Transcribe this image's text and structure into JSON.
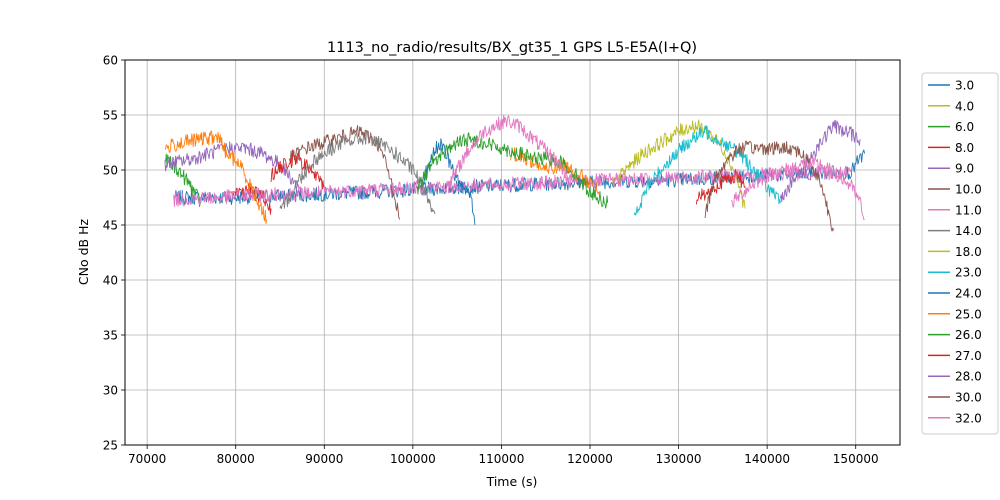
{
  "chart_data": {
    "type": "line",
    "title": "1113_no_radio/results/BX_gt35_1 GPS L5-E5A(I+Q)",
    "xlabel": "Time (s)",
    "ylabel": "CNo dB Hz",
    "xlim": [
      67500,
      155000
    ],
    "ylim": [
      25,
      60
    ],
    "xticks": [
      70000,
      80000,
      90000,
      100000,
      110000,
      120000,
      130000,
      140000,
      150000
    ],
    "yticks": [
      25,
      30,
      35,
      40,
      45,
      50,
      55,
      60
    ],
    "grid": true,
    "legend_position": "right",
    "series": [
      {
        "name": "3.0",
        "color": "#1f77b4",
        "segments": [
          [
            [
              73000,
              47.5
            ],
            [
              80000,
              47.5
            ],
            [
              90000,
              47.8
            ],
            [
              100000,
              48.2
            ],
            [
              110000,
              48.6
            ],
            [
              120000,
              48.9
            ],
            [
              130000,
              49.1
            ],
            [
              140000,
              49.5
            ],
            [
              149500,
              49.8
            ],
            [
              150000,
              50.5
            ],
            [
              150500,
              51.0
            ],
            [
              151000,
              51.5
            ]
          ]
        ]
      },
      {
        "name": "4.0",
        "color": "#bcbd22",
        "segments": [
          [
            [
              122500,
              48.5
            ],
            [
              124000,
              50.0
            ],
            [
              126000,
              51.5
            ],
            [
              128000,
              52.5
            ],
            [
              130000,
              53.5
            ],
            [
              131500,
              54.0
            ],
            [
              133000,
              53.8
            ],
            [
              135000,
              52.0
            ],
            [
              136500,
              49.5
            ],
            [
              137500,
              46.5
            ]
          ]
        ]
      },
      {
        "name": "6.0",
        "color": "#2ca02c",
        "segments": [
          [
            [
              72000,
              51.0
            ],
            [
              73500,
              50.0
            ],
            [
              75000,
              48.5
            ],
            [
              76000,
              47.0
            ]
          ]
        ]
      },
      {
        "name": "8.0",
        "color": "#d62728",
        "segments": [
          [
            [
              79000,
              48.0
            ],
            [
              80000,
              48.0
            ],
            [
              81500,
              48.2
            ],
            [
              83000,
              47.5
            ],
            [
              84000,
              46.5
            ]
          ]
        ]
      },
      {
        "name": "9.0",
        "color": "#9467bd",
        "segments": [
          [
            [
              72000,
              50.5
            ],
            [
              75000,
              51.0
            ],
            [
              77000,
              51.5
            ],
            [
              79000,
              52.0
            ],
            [
              81000,
              52.0
            ],
            [
              83000,
              51.5
            ],
            [
              85000,
              50.5
            ],
            [
              86500,
              49.0
            ],
            [
              87500,
              48.0
            ]
          ]
        ]
      },
      {
        "name": "10.0",
        "color": "#8c564b",
        "segments": [
          [
            [
              86000,
              51.0
            ],
            [
              88000,
              52.0
            ],
            [
              90000,
              52.5
            ],
            [
              92000,
              53.0
            ],
            [
              94000,
              53.5
            ],
            [
              96000,
              52.5
            ],
            [
              97000,
              50.5
            ],
            [
              98000,
              47.5
            ],
            [
              98500,
              45.5
            ]
          ]
        ]
      },
      {
        "name": "11.0",
        "color": "#e377c2",
        "segments": [
          [
            [
              73000,
              47.3
            ],
            [
              80000,
              47.6
            ],
            [
              90000,
              48.0
            ],
            [
              100000,
              48.4
            ],
            [
              110000,
              48.7
            ],
            [
              120000,
              49.0
            ],
            [
              130000,
              49.3
            ],
            [
              140000,
              49.6
            ],
            [
              149500,
              49.8
            ]
          ]
        ]
      },
      {
        "name": "14.0",
        "color": "#7f7f7f",
        "segments": [
          [
            [
              85000,
              46.0
            ],
            [
              86000,
              47.5
            ],
            [
              87000,
              49.0
            ],
            [
              89000,
              51.0
            ],
            [
              92000,
              52.5
            ],
            [
              95000,
              53.0
            ],
            [
              98000,
              51.5
            ],
            [
              100000,
              50.0
            ],
            [
              101500,
              48.0
            ],
            [
              102500,
              46.0
            ]
          ]
        ]
      },
      {
        "name": "18.0",
        "color": "#bcbd22",
        "segments": []
      },
      {
        "name": "23.0",
        "color": "#17becf",
        "segments": [
          [
            [
              125000,
              45.5
            ],
            [
              126500,
              48.5
            ],
            [
              128500,
              50.5
            ],
            [
              131000,
              52.5
            ],
            [
              133000,
              53.5
            ],
            [
              135000,
              52.5
            ],
            [
              137000,
              51.5
            ],
            [
              139000,
              49.5
            ],
            [
              140500,
              48.0
            ],
            [
              141500,
              47.0
            ]
          ]
        ]
      },
      {
        "name": "24.0",
        "color": "#1f77b4",
        "segments": [
          [
            [
              101000,
              48.5
            ],
            [
              102000,
              51.0
            ],
            [
              103000,
              52.5
            ],
            [
              104000,
              51.0
            ],
            [
              105000,
              49.0
            ],
            [
              106500,
              48.0
            ],
            [
              107000,
              45.0
            ]
          ]
        ]
      },
      {
        "name": "25.0",
        "color": "#ff7f0e",
        "segments": [
          [
            [
              72000,
              52.0
            ],
            [
              74000,
              52.5
            ],
            [
              76000,
              52.8
            ],
            [
              78000,
              53.0
            ],
            [
              79000,
              51.5
            ],
            [
              80500,
              50.5
            ],
            [
              82000,
              48.0
            ],
            [
              83500,
              45.5
            ]
          ],
          [
            [
              111000,
              51.5
            ],
            [
              113000,
              51.0
            ],
            [
              115000,
              50.0
            ],
            [
              117000,
              50.5
            ],
            [
              119000,
              49.5
            ],
            [
              121000,
              48.0
            ]
          ]
        ]
      },
      {
        "name": "26.0",
        "color": "#2ca02c",
        "segments": [
          [
            [
              100500,
              48.0
            ],
            [
              102000,
              50.5
            ],
            [
              104000,
              52.0
            ],
            [
              106000,
              52.8
            ],
            [
              108000,
              52.5
            ],
            [
              110000,
              52.0
            ],
            [
              112000,
              51.5
            ],
            [
              114000,
              51.0
            ],
            [
              116000,
              51.0
            ],
            [
              117000,
              50.5
            ],
            [
              118500,
              49.5
            ],
            [
              120000,
              48.0
            ],
            [
              122000,
              47.0
            ]
          ]
        ]
      },
      {
        "name": "27.0",
        "color": "#d62728",
        "segments": [
          [
            [
              84000,
              49.5
            ],
            [
              85500,
              50.5
            ],
            [
              87000,
              51.0
            ],
            [
              88500,
              50.0
            ],
            [
              90000,
              48.5
            ]
          ],
          [
            [
              132000,
              47.5
            ],
            [
              133500,
              48.0
            ],
            [
              135000,
              49.0
            ],
            [
              136500,
              49.5
            ],
            [
              137500,
              48.5
            ]
          ]
        ]
      },
      {
        "name": "28.0",
        "color": "#9467bd",
        "segments": [
          [
            [
              141500,
              47.5
            ],
            [
              143000,
              49.0
            ],
            [
              144500,
              50.5
            ],
            [
              146000,
              52.5
            ],
            [
              147500,
              54.0
            ],
            [
              149000,
              53.5
            ],
            [
              150500,
              52.8
            ]
          ]
        ]
      },
      {
        "name": "30.0",
        "color": "#8c564b",
        "segments": [
          [
            [
              133000,
              46.0
            ],
            [
              134000,
              49.0
            ],
            [
              135500,
              51.0
            ],
            [
              137000,
              52.0
            ],
            [
              139000,
              52.0
            ],
            [
              141000,
              52.0
            ],
            [
              143000,
              52.0
            ],
            [
              144500,
              51.0
            ],
            [
              146000,
              49.0
            ],
            [
              147000,
              46.0
            ],
            [
              147500,
              44.5
            ]
          ]
        ]
      },
      {
        "name": "32.0",
        "color": "#e377c2",
        "segments": [
          [
            [
              104000,
              48.5
            ],
            [
              106000,
              51.5
            ],
            [
              108000,
              53.5
            ],
            [
              110500,
              54.5
            ],
            [
              112000,
              54.0
            ],
            [
              114000,
              52.5
            ],
            [
              116000,
              51.0
            ],
            [
              118000,
              49.0
            ]
          ],
          [
            [
              136000,
              47.0
            ],
            [
              138000,
              48.5
            ],
            [
              140000,
              49.5
            ],
            [
              142000,
              50.0
            ],
            [
              144000,
              50.5
            ],
            [
              146000,
              50.5
            ],
            [
              148000,
              49.5
            ],
            [
              149500,
              48.5
            ],
            [
              150500,
              47.0
            ],
            [
              151000,
              45.5
            ]
          ]
        ]
      }
    ]
  }
}
